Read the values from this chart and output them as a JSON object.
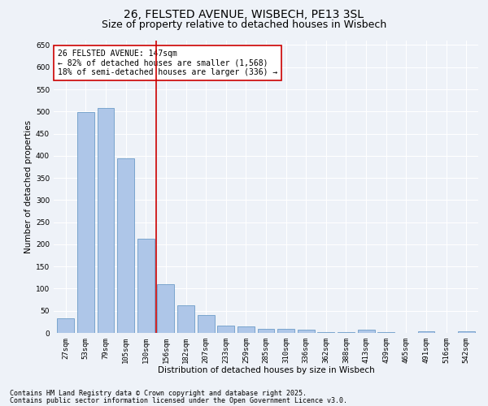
{
  "title_line1": "26, FELSTED AVENUE, WISBECH, PE13 3SL",
  "title_line2": "Size of property relative to detached houses in Wisbech",
  "xlabel": "Distribution of detached houses by size in Wisbech",
  "ylabel": "Number of detached properties",
  "categories": [
    "27sqm",
    "53sqm",
    "79sqm",
    "105sqm",
    "130sqm",
    "156sqm",
    "182sqm",
    "207sqm",
    "233sqm",
    "259sqm",
    "285sqm",
    "310sqm",
    "336sqm",
    "362sqm",
    "388sqm",
    "413sqm",
    "439sqm",
    "465sqm",
    "491sqm",
    "516sqm",
    "542sqm"
  ],
  "values": [
    33,
    498,
    508,
    395,
    213,
    110,
    62,
    40,
    17,
    14,
    10,
    10,
    8,
    2,
    2,
    7,
    2,
    0,
    3,
    0,
    4
  ],
  "bar_color": "#aec6e8",
  "bar_edge_color": "#5a8fc0",
  "vline_x_index": 4.5,
  "vline_color": "#cc0000",
  "annotation_line1": "26 FELSTED AVENUE: 147sqm",
  "annotation_line2": "← 82% of detached houses are smaller (1,568)",
  "annotation_line3": "18% of semi-detached houses are larger (336) →",
  "annotation_box_color": "#ffffff",
  "annotation_box_edge": "#cc0000",
  "ylim": [
    0,
    660
  ],
  "yticks": [
    0,
    50,
    100,
    150,
    200,
    250,
    300,
    350,
    400,
    450,
    500,
    550,
    600,
    650
  ],
  "background_color": "#eef2f8",
  "grid_color": "#ffffff",
  "footer_line1": "Contains HM Land Registry data © Crown copyright and database right 2025.",
  "footer_line2": "Contains public sector information licensed under the Open Government Licence v3.0.",
  "title_fontsize": 10,
  "subtitle_fontsize": 9,
  "axis_label_fontsize": 7.5,
  "tick_fontsize": 6.5,
  "annotation_fontsize": 7,
  "footer_fontsize": 6
}
